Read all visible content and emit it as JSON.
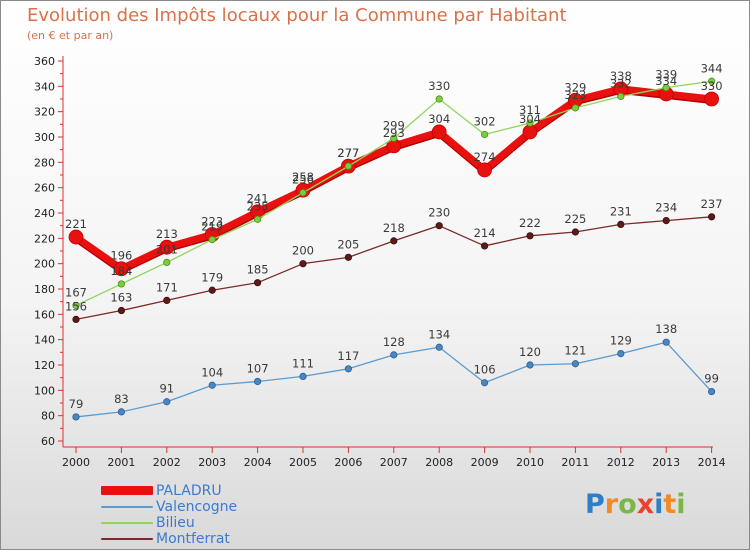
{
  "title": "Evolution des Impôts locaux pour la Commune par Habitant",
  "subtitle": "(en € et par an)",
  "logo": {
    "text": "Proxiti",
    "letters": [
      {
        "ch": "P",
        "color": "#2f7fc8"
      },
      {
        "ch": "r",
        "color": "#f08a24"
      },
      {
        "ch": "o",
        "color": "#7ab648"
      },
      {
        "ch": "x",
        "color": "#e8432f"
      },
      {
        "ch": "i",
        "color": "#2f7fc8"
      },
      {
        "ch": "t",
        "color": "#f08a24"
      },
      {
        "ch": "i",
        "color": "#7ab648"
      }
    ]
  },
  "chart_data": {
    "type": "line",
    "title": "Evolution des Impôts locaux pour la Commune par Habitant",
    "subtitle": "(en € et par an)",
    "x": [
      "2000",
      "2001",
      "2002",
      "2003",
      "2004",
      "2005",
      "2006",
      "2007",
      "2008",
      "2009",
      "2010",
      "2011",
      "2012",
      "2013",
      "2014"
    ],
    "ylim": [
      60,
      360
    ],
    "yticks": [
      60,
      80,
      100,
      120,
      140,
      160,
      180,
      200,
      220,
      240,
      260,
      280,
      300,
      320,
      340,
      360
    ],
    "grid": false,
    "legend_position": "bottom-left",
    "series": [
      {
        "name": "PALADRU",
        "color": "#e8110f",
        "values": [
          221,
          196,
          213,
          223,
          241,
          258,
          277,
          293,
          304,
          274,
          304,
          329,
          338,
          334,
          330
        ]
      },
      {
        "name": "Valencogne",
        "color": "#4a8bc6",
        "values": [
          79,
          83,
          91,
          104,
          107,
          111,
          117,
          128,
          134,
          106,
          120,
          121,
          129,
          138,
          99
        ]
      },
      {
        "name": "Bilieu",
        "color": "#7ccc3c",
        "values": [
          167,
          184,
          201,
          219,
          235,
          256,
          277,
          299,
          330,
          302,
          311,
          323,
          332,
          339,
          344
        ]
      },
      {
        "name": "Montferrat",
        "color": "#6b1e1e",
        "values": [
          156,
          163,
          171,
          179,
          185,
          200,
          205,
          218,
          230,
          214,
          222,
          225,
          231,
          234,
          237
        ]
      }
    ],
    "point_labels": [
      {
        "series": "PALADRU",
        "labels": [
          "221",
          "196",
          "213",
          "223",
          "241",
          "258",
          "277",
          "293",
          "304",
          "274",
          "304",
          "329",
          "338",
          "334",
          "330"
        ]
      },
      {
        "series": "Valencogne",
        "labels": [
          "79",
          "83",
          "91",
          "104",
          "107",
          "111",
          "117",
          "128",
          "134",
          "106",
          "120",
          "121",
          "129",
          "138",
          "99"
        ]
      },
      {
        "series": "Bilieu",
        "labels": [
          "167",
          "184",
          "201",
          "219",
          "235",
          "256",
          "277",
          "299",
          "330",
          "302",
          "311",
          "323",
          "332",
          "339",
          "344"
        ]
      },
      {
        "series": "Montferrat",
        "labels": [
          "156",
          "163",
          "171",
          "179",
          "185",
          "200",
          "205",
          "218",
          "230",
          "214",
          "222",
          "225",
          "231",
          "234",
          "237"
        ]
      }
    ]
  }
}
